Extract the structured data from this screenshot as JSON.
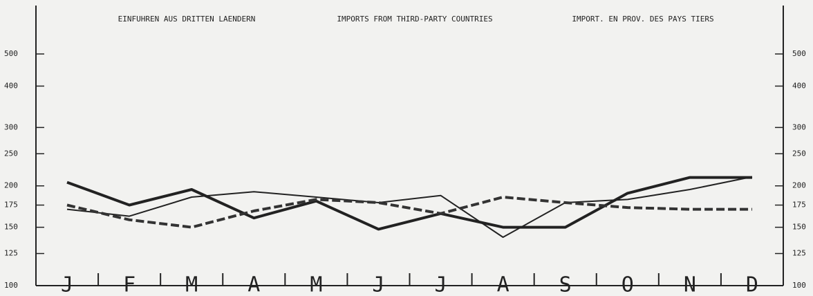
{
  "chart_data": {
    "type": "line",
    "title": [
      "EINFUHREN AUS DRITTEN LAENDERN",
      "IMPORTS FROM THIRD-PARTY COUNTRIES",
      "IMPORT. EN PROV. DES PAYS TIERS"
    ],
    "categories": [
      "J",
      "F",
      "M",
      "A",
      "M",
      "J",
      "J",
      "A",
      "S",
      "O",
      "N",
      "D"
    ],
    "series": [
      {
        "color": "#222222",
        "style": "thick",
        "values": [
          205,
          175,
          195,
          160,
          180,
          148,
          165,
          150,
          150,
          190,
          212,
          212
        ]
      },
      {
        "color": "#222222",
        "style": "thin",
        "values": [
          170,
          162,
          185,
          192,
          185,
          178,
          187,
          140,
          178,
          182,
          195,
          213
        ]
      },
      {
        "color": "#333333",
        "style": "dashed",
        "values": [
          175,
          158,
          150,
          168,
          182,
          178,
          165,
          185,
          178,
          172,
          170,
          170
        ]
      }
    ],
    "log_scale": true,
    "ylim": [
      100,
      700
    ],
    "yticks": [
      100,
      125,
      150,
      175,
      200,
      250,
      300,
      400,
      500
    ]
  }
}
